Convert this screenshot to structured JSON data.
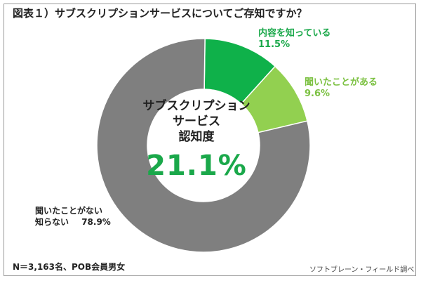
{
  "title": "図表１）サブスクリプションサービスについてご存知ですか？",
  "center": {
    "line1": "サブスクリプション",
    "line2": "サービス",
    "line3": "認知度",
    "value": "21.1%"
  },
  "labels": {
    "know_name": "内容を知っている",
    "know_value": "11.5%",
    "heard_name": "聞いたことがある",
    "heard_value": "9.6%",
    "unknown_line1": "聞いたことがない",
    "unknown_line2": "知らない",
    "unknown_value": "78.9%"
  },
  "footer": {
    "sample": "N＝3,163名、POB会員男女",
    "source": "ソフトブレーン・フィールド調べ"
  },
  "chart_data": {
    "type": "pie",
    "donut": true,
    "categories": [
      "内容を知っている",
      "聞いたことがある",
      "聞いたことがない 知らない"
    ],
    "values": [
      11.5,
      9.6,
      78.9
    ],
    "colors": [
      "#0fb14a",
      "#92d050",
      "#7f7f7f"
    ]
  }
}
